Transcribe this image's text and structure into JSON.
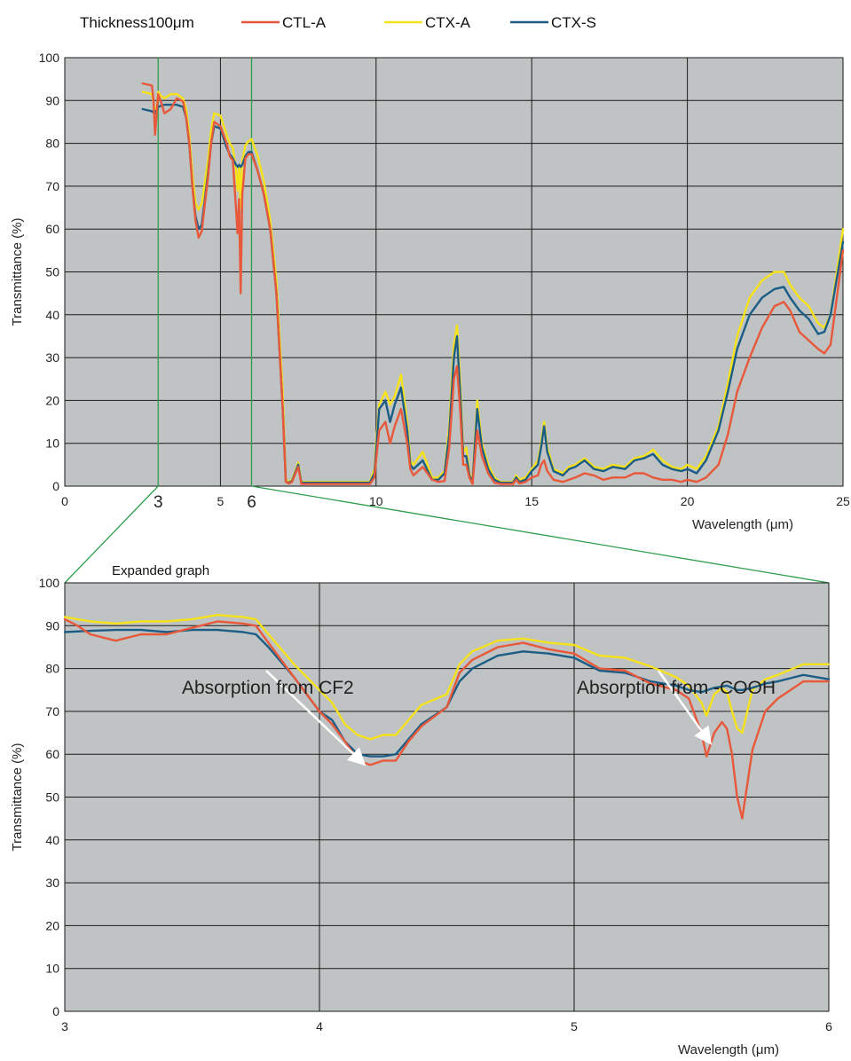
{
  "header": {
    "thickness_label": "Thickness100μm"
  },
  "colors": {
    "plot_background": "#bfc3c3",
    "grid": "#1a1a1a",
    "zoom_guide": "#2e9d4b",
    "CTL-A": "#e8583a",
    "CTX-A": "#f6e21a",
    "CTX-S": "#1c5d86",
    "arrow": "#ffffff"
  },
  "chart_data": [
    {
      "id": "full",
      "type": "line",
      "title": "",
      "xlabel": "Wavelength (μm)",
      "ylabel": "Transmittance (%)",
      "xlim": [
        0,
        25
      ],
      "ylim": [
        0,
        100
      ],
      "grid": true,
      "legend": "top",
      "x_ticks": [
        "0",
        "5",
        "10",
        "15",
        "20",
        "25"
      ],
      "x_tick_values": [
        0,
        5,
        10,
        15,
        20,
        25
      ],
      "y_ticks": [
        "0",
        "10",
        "20",
        "30",
        "40",
        "50",
        "60",
        "70",
        "80",
        "90",
        "100"
      ],
      "highlight_ticks": [
        "3",
        "6"
      ],
      "highlight_tick_values": [
        3,
        6
      ],
      "series": [
        {
          "name": "CTL-A",
          "x": [
            2.5,
            2.8,
            2.85,
            2.9,
            3.0,
            3.1,
            3.2,
            3.4,
            3.6,
            3.8,
            3.9,
            4.0,
            4.1,
            4.2,
            4.3,
            4.4,
            4.5,
            4.6,
            4.7,
            4.8,
            5.0,
            5.2,
            5.3,
            5.4,
            5.5,
            5.55,
            5.6,
            5.65,
            5.7,
            5.8,
            5.9,
            6.0,
            6.2,
            6.4,
            6.6,
            6.8,
            7.0,
            7.1,
            7.2,
            7.3,
            7.5,
            7.6,
            7.7,
            8.0,
            9.0,
            9.5,
            9.8,
            9.95,
            10.0,
            10.1,
            10.3,
            10.45,
            10.6,
            10.8,
            11.0,
            11.1,
            11.2,
            11.5,
            11.8,
            12.0,
            12.2,
            12.35,
            12.5,
            12.6,
            12.7,
            12.8,
            12.9,
            13.0,
            13.1,
            13.25,
            13.4,
            13.6,
            13.8,
            14.0,
            14.2,
            14.4,
            14.5,
            14.6,
            14.8,
            15.0,
            15.2,
            15.3,
            15.4,
            15.5,
            15.7,
            16.0,
            16.2,
            16.4,
            16.7,
            17.0,
            17.3,
            17.6,
            18.0,
            18.3,
            18.6,
            18.9,
            19.2,
            19.5,
            19.8,
            20.0,
            20.3,
            20.6,
            21.0,
            21.3,
            21.6,
            22.0,
            22.4,
            22.8,
            23.1,
            23.3,
            23.6,
            23.9,
            24.2,
            24.4,
            24.6,
            25.0
          ],
          "y": [
            94,
            93.5,
            90,
            82,
            91.5,
            89.5,
            87,
            88,
            90.5,
            89.8,
            86,
            80,
            70,
            62,
            58,
            59.5,
            66,
            72,
            80,
            85,
            84,
            80,
            77,
            76,
            65,
            59,
            67,
            45,
            68,
            76.5,
            77.5,
            77.5,
            73.5,
            68,
            60,
            45,
            18,
            1,
            0.6,
            1,
            4.5,
            0.5,
            0.5,
            0.5,
            0.5,
            0.5,
            0.5,
            2,
            6,
            13,
            15,
            10,
            14,
            18,
            10,
            4,
            2.5,
            4.5,
            1.5,
            1,
            1.2,
            9,
            25,
            28,
            18,
            5,
            5,
            2,
            0.5,
            13,
            7,
            3,
            0.8,
            0.5,
            0.5,
            0.5,
            1.5,
            0.6,
            1,
            2,
            2.5,
            5,
            6,
            3.5,
            1.5,
            1,
            1.5,
            2,
            3,
            2.5,
            1.5,
            2,
            2,
            3,
            3,
            2,
            1.5,
            1.5,
            1,
            1.5,
            1,
            2,
            5,
            12,
            22,
            30,
            37,
            42,
            43,
            41,
            36,
            34,
            32,
            31,
            33,
            55
          ]
        },
        {
          "name": "CTX-A",
          "x": [
            2.5,
            2.8,
            2.9,
            2.95,
            3.0,
            3.1,
            3.2,
            3.4,
            3.6,
            3.8,
            3.9,
            4.0,
            4.1,
            4.2,
            4.3,
            4.4,
            4.5,
            4.6,
            4.7,
            4.8,
            5.0,
            5.2,
            5.3,
            5.4,
            5.5,
            5.55,
            5.6,
            5.65,
            5.7,
            5.8,
            5.9,
            6.0,
            6.2,
            6.4,
            6.6,
            6.8,
            7.0,
            7.1,
            7.2,
            7.3,
            7.5,
            7.6,
            7.7,
            8.0,
            9.0,
            9.5,
            9.8,
            9.95,
            10.0,
            10.1,
            10.3,
            10.45,
            10.6,
            10.8,
            11.0,
            11.1,
            11.2,
            11.5,
            11.8,
            12.0,
            12.2,
            12.35,
            12.5,
            12.6,
            12.7,
            12.8,
            12.9,
            13.0,
            13.1,
            13.25,
            13.4,
            13.6,
            13.8,
            14.0,
            14.2,
            14.4,
            14.5,
            14.6,
            14.8,
            15.0,
            15.2,
            15.3,
            15.4,
            15.5,
            15.7,
            16.0,
            16.2,
            16.4,
            16.7,
            17.0,
            17.3,
            17.6,
            18.0,
            18.3,
            18.6,
            18.9,
            19.2,
            19.5,
            19.8,
            20.0,
            20.3,
            20.6,
            21.0,
            21.3,
            21.6,
            22.0,
            22.4,
            22.8,
            23.1,
            23.3,
            23.6,
            23.9,
            24.2,
            24.4,
            24.6,
            25.0
          ],
          "y": [
            92,
            91.5,
            88,
            87,
            92,
            91,
            90.5,
            91.5,
            91.5,
            90.5,
            88,
            82,
            73,
            66,
            64.5,
            66,
            71,
            76,
            83,
            87,
            86.5,
            82,
            80,
            79,
            74,
            69,
            75,
            65,
            76,
            79.5,
            80.5,
            81,
            77,
            71,
            62,
            48,
            22,
            1.5,
            1,
            1.5,
            5.5,
            1,
            1,
            1,
            1,
            1,
            1,
            4,
            10,
            19,
            22,
            19,
            21,
            26,
            15,
            6,
            5,
            8,
            2,
            2,
            3.5,
            14,
            33,
            37.5,
            25,
            8,
            9,
            3,
            1,
            20,
            10,
            5,
            2,
            1,
            1,
            1,
            2.5,
            1.5,
            2,
            4,
            6,
            10,
            15,
            9,
            4,
            3,
            4.5,
            5,
            6.5,
            4.5,
            4,
            5,
            4.5,
            6.5,
            7,
            8.5,
            6,
            4.5,
            4,
            5,
            4,
            7,
            14,
            24,
            35,
            44,
            48,
            50,
            50,
            47,
            44,
            42,
            38,
            37,
            40,
            60
          ]
        },
        {
          "name": "CTX-S",
          "x": [
            2.5,
            2.8,
            2.9,
            3.0,
            3.1,
            3.2,
            3.4,
            3.6,
            3.8,
            3.9,
            4.0,
            4.1,
            4.2,
            4.3,
            4.4,
            4.5,
            4.6,
            4.7,
            4.8,
            5.0,
            5.2,
            5.3,
            5.4,
            5.5,
            5.55,
            5.6,
            5.65,
            5.7,
            5.8,
            5.9,
            6.0,
            6.2,
            6.4,
            6.6,
            6.8,
            7.0,
            7.1,
            7.2,
            7.3,
            7.5,
            7.6,
            7.7,
            8.0,
            9.0,
            9.5,
            9.8,
            9.95,
            10.0,
            10.1,
            10.3,
            10.45,
            10.6,
            10.8,
            11.0,
            11.1,
            11.2,
            11.5,
            11.8,
            12.0,
            12.2,
            12.35,
            12.5,
            12.6,
            12.7,
            12.8,
            12.9,
            13.0,
            13.1,
            13.25,
            13.4,
            13.6,
            13.8,
            14.0,
            14.2,
            14.4,
            14.5,
            14.6,
            14.8,
            15.0,
            15.2,
            15.3,
            15.4,
            15.5,
            15.7,
            16.0,
            16.2,
            16.4,
            16.7,
            17.0,
            17.3,
            17.6,
            18.0,
            18.3,
            18.6,
            18.9,
            19.2,
            19.5,
            19.8,
            20.0,
            20.3,
            20.6,
            21.0,
            21.3,
            21.6,
            22.0,
            22.4,
            22.8,
            23.1,
            23.3,
            23.6,
            23.9,
            24.2,
            24.4,
            24.6,
            25.0
          ],
          "y": [
            88,
            87.5,
            87,
            88.5,
            88.8,
            89,
            89,
            89,
            88.5,
            86,
            80,
            70,
            63,
            60,
            61,
            67,
            73,
            80,
            84,
            83.5,
            79,
            77.5,
            76.5,
            75,
            74.5,
            75,
            74.5,
            75,
            77,
            78,
            78,
            73.5,
            68,
            60,
            45,
            18,
            1,
            0.8,
            1.2,
            5,
            0.8,
            0.8,
            0.8,
            0.8,
            0.8,
            0.8,
            3,
            8,
            18,
            20,
            15,
            19,
            23,
            13,
            5,
            4,
            6,
            1.5,
            1.5,
            3,
            12,
            30,
            35,
            22,
            7,
            7,
            2.5,
            0.8,
            18,
            9,
            4,
            1.5,
            0.8,
            0.8,
            0.8,
            2,
            1,
            1.5,
            3.5,
            5,
            9,
            14,
            8,
            3.5,
            2.5,
            4,
            4.5,
            6,
            4,
            3.5,
            4.5,
            4,
            6,
            6.5,
            7.5,
            5,
            4,
            3.5,
            4,
            3,
            6,
            13,
            22,
            32,
            40,
            44,
            46,
            46.5,
            44,
            41,
            39,
            35.5,
            36,
            40,
            57
          ]
        }
      ]
    },
    {
      "id": "expanded",
      "type": "line",
      "title": "Expanded graph",
      "xlabel": "Wavelength (μm)",
      "ylabel": "Transmittance (%)",
      "xlim": [
        3,
        6
      ],
      "ylim": [
        0,
        100
      ],
      "grid": true,
      "x_ticks": [
        "3",
        "4",
        "5",
        "6"
      ],
      "x_tick_values": [
        3,
        4,
        5,
        6
      ],
      "y_ticks": [
        "0",
        "10",
        "20",
        "30",
        "40",
        "50",
        "60",
        "70",
        "80",
        "90",
        "100"
      ],
      "series": [
        {
          "name": "CTL-A",
          "x": [
            3.0,
            3.05,
            3.1,
            3.2,
            3.3,
            3.4,
            3.5,
            3.6,
            3.7,
            3.75,
            3.8,
            3.9,
            4.0,
            4.05,
            4.1,
            4.15,
            4.2,
            4.25,
            4.3,
            4.35,
            4.4,
            4.5,
            4.55,
            4.6,
            4.7,
            4.8,
            4.9,
            5.0,
            5.1,
            5.2,
            5.3,
            5.4,
            5.45,
            5.5,
            5.52,
            5.55,
            5.58,
            5.6,
            5.62,
            5.64,
            5.66,
            5.7,
            5.75,
            5.8,
            5.9,
            6.0
          ],
          "y": [
            91.5,
            90,
            88,
            86.5,
            88,
            88,
            89.5,
            91,
            90.5,
            90,
            86,
            78,
            70,
            67,
            63,
            58.5,
            57.5,
            58.5,
            58.5,
            63,
            66.5,
            71,
            79,
            82,
            85,
            86,
            84.5,
            83.5,
            80,
            79.5,
            76.5,
            75,
            73,
            65,
            59.5,
            65,
            67.5,
            66,
            60,
            50,
            45,
            61,
            70,
            73,
            77,
            77
          ]
        },
        {
          "name": "CTX-A",
          "x": [
            3.0,
            3.1,
            3.2,
            3.3,
            3.4,
            3.5,
            3.6,
            3.7,
            3.75,
            3.8,
            3.9,
            4.0,
            4.05,
            4.1,
            4.15,
            4.2,
            4.25,
            4.3,
            4.35,
            4.4,
            4.5,
            4.55,
            4.6,
            4.7,
            4.8,
            4.9,
            5.0,
            5.1,
            5.2,
            5.3,
            5.4,
            5.45,
            5.5,
            5.52,
            5.55,
            5.58,
            5.6,
            5.62,
            5.64,
            5.66,
            5.7,
            5.75,
            5.8,
            5.9,
            6.0
          ],
          "y": [
            92,
            91,
            90.5,
            91,
            91,
            91.5,
            92.5,
            92,
            91.5,
            88,
            81,
            75,
            72,
            67,
            64.5,
            63.5,
            64.5,
            64.5,
            68,
            71.5,
            74,
            81,
            84,
            86.5,
            87,
            86,
            85.5,
            83,
            82.5,
            80.5,
            78,
            76,
            72,
            69,
            74,
            75.5,
            74.5,
            70,
            66,
            65,
            75,
            77.5,
            78.5,
            81,
            81
          ]
        },
        {
          "name": "CTX-S",
          "x": [
            3.0,
            3.1,
            3.2,
            3.3,
            3.4,
            3.5,
            3.6,
            3.7,
            3.75,
            3.8,
            3.9,
            4.0,
            4.05,
            4.1,
            4.15,
            4.2,
            4.25,
            4.3,
            4.35,
            4.4,
            4.5,
            4.55,
            4.6,
            4.7,
            4.8,
            4.9,
            5.0,
            5.1,
            5.2,
            5.3,
            5.4,
            5.45,
            5.5,
            5.55,
            5.6,
            5.62,
            5.64,
            5.66,
            5.7,
            5.75,
            5.8,
            5.9,
            6.0
          ],
          "y": [
            88.5,
            88.8,
            89,
            89,
            88.5,
            89,
            89,
            88.5,
            88,
            85,
            78,
            70,
            68,
            63,
            60,
            59.5,
            59.5,
            60,
            63.5,
            67,
            71,
            77,
            80,
            83,
            84,
            83.5,
            82.5,
            79.5,
            79,
            77,
            76,
            75,
            74.5,
            75.5,
            76,
            75.5,
            75,
            75,
            75.5,
            76.5,
            77,
            78.5,
            77.5
          ]
        }
      ],
      "annotations": [
        {
          "text": "Absorption from CF2",
          "target_x": 4.17,
          "target_y": 58
        },
        {
          "text": "Absorption from -COOH",
          "target_x": 5.53,
          "target_y": 63
        }
      ]
    }
  ]
}
